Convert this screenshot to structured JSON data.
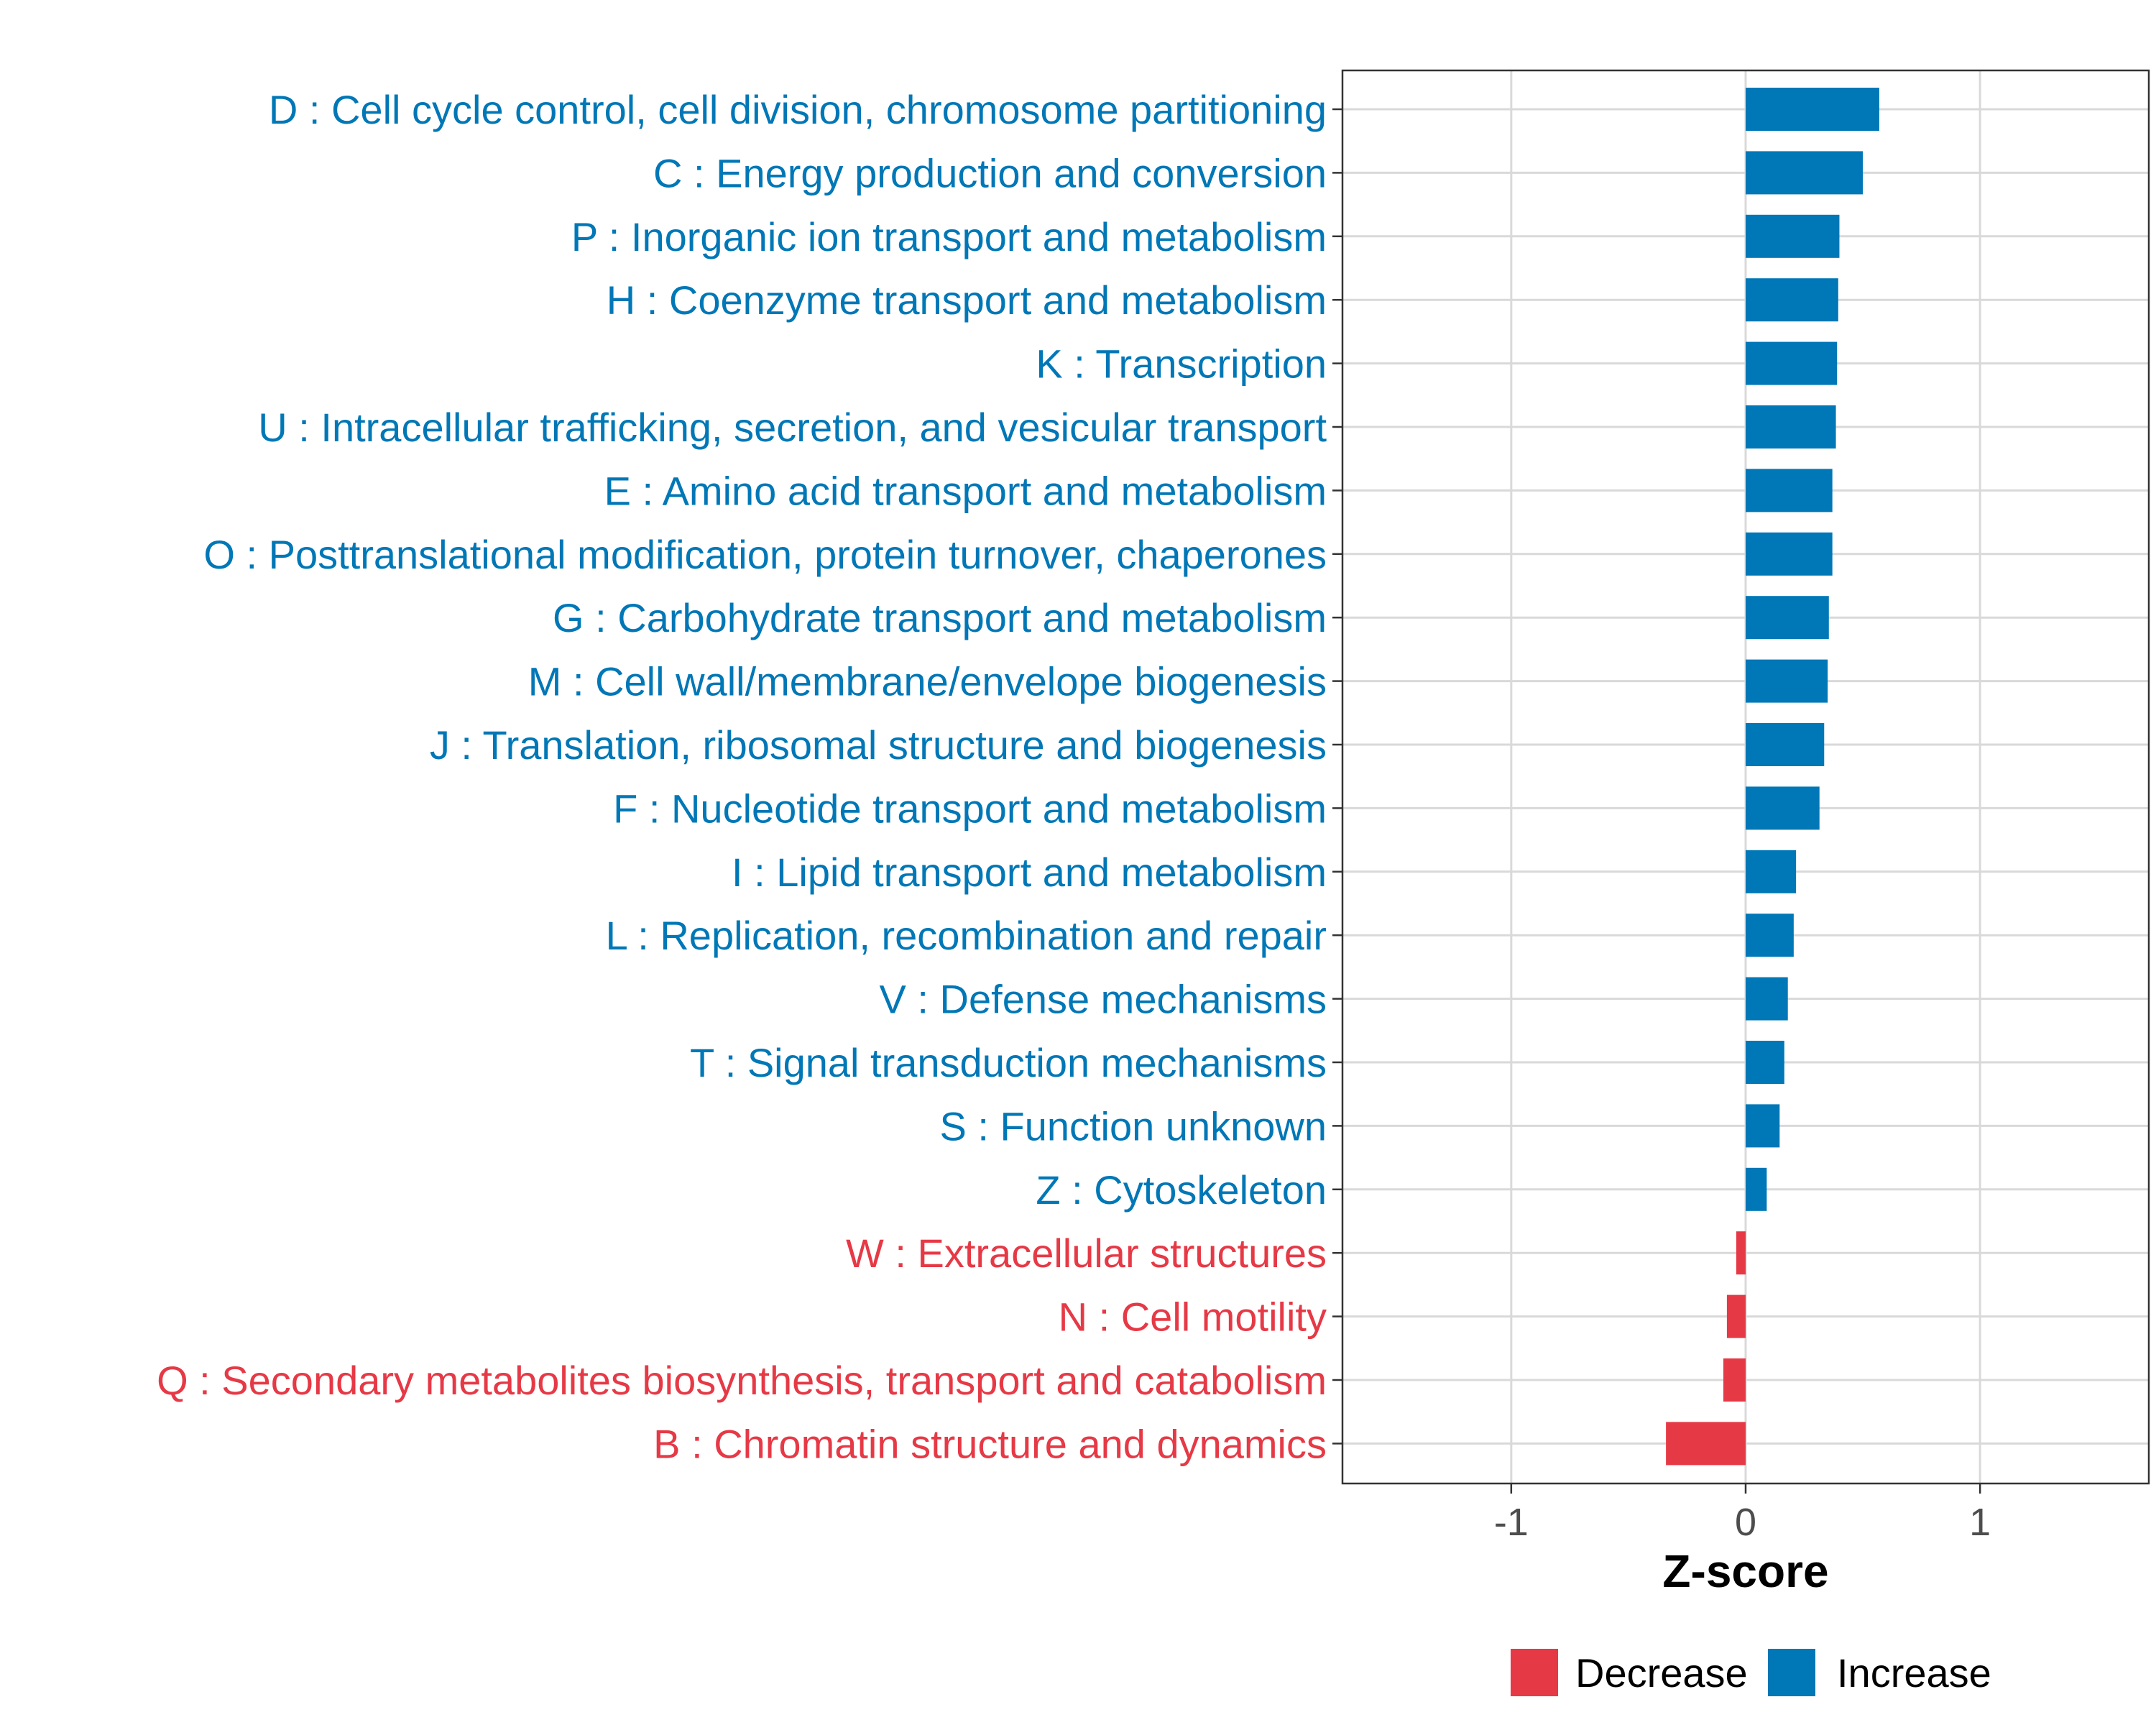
{
  "chart_data": {
    "type": "bar",
    "orientation": "horizontal",
    "title": "",
    "xlabel": "Z-score",
    "ylabel": "",
    "xlim": [
      -1.72,
      1.72
    ],
    "xticks": [
      -1,
      0,
      1
    ],
    "xtick_labels": [
      "-1",
      "0",
      "1"
    ],
    "grid": true,
    "legend_position": "bottom",
    "colors": {
      "Decrease": "#E63946",
      "Increase": "#0077B6"
    },
    "legend": [
      {
        "label": "Decrease",
        "color": "#E63946"
      },
      {
        "label": "Increase",
        "color": "#0077B6"
      }
    ],
    "categories": [
      "D : Cell cycle control, cell division, chromosome partitioning",
      "C : Energy production and conversion",
      "P : Inorganic ion transport and metabolism",
      "H : Coenzyme transport and metabolism",
      "K : Transcription",
      "U : Intracellular trafficking, secretion, and vesicular transport",
      "E : Amino acid transport and metabolism",
      "O : Posttranslational modification, protein turnover, chaperones",
      "G : Carbohydrate transport and metabolism",
      "M : Cell wall/membrane/envelope biogenesis",
      "J : Translation, ribosomal structure and biogenesis",
      "F : Nucleotide transport and metabolism",
      "I : Lipid transport and metabolism",
      "L : Replication, recombination and repair",
      "V : Defense mechanisms",
      "T : Signal transduction mechanisms",
      "S : Function unknown",
      "Z : Cytoskeleton",
      "W : Extracellular structures",
      "N : Cell motility",
      "Q : Secondary metabolites biosynthesis, transport and catabolism",
      "B : Chromatin structure and dynamics"
    ],
    "values": [
      0.57,
      0.5,
      0.4,
      0.395,
      0.39,
      0.385,
      0.37,
      0.37,
      0.355,
      0.35,
      0.335,
      0.315,
      0.215,
      0.205,
      0.18,
      0.165,
      0.145,
      0.09,
      -0.04,
      -0.08,
      -0.095,
      -0.34
    ],
    "groups": [
      "Increase",
      "Increase",
      "Increase",
      "Increase",
      "Increase",
      "Increase",
      "Increase",
      "Increase",
      "Increase",
      "Increase",
      "Increase",
      "Increase",
      "Increase",
      "Increase",
      "Increase",
      "Increase",
      "Increase",
      "Increase",
      "Decrease",
      "Decrease",
      "Decrease",
      "Decrease"
    ]
  }
}
